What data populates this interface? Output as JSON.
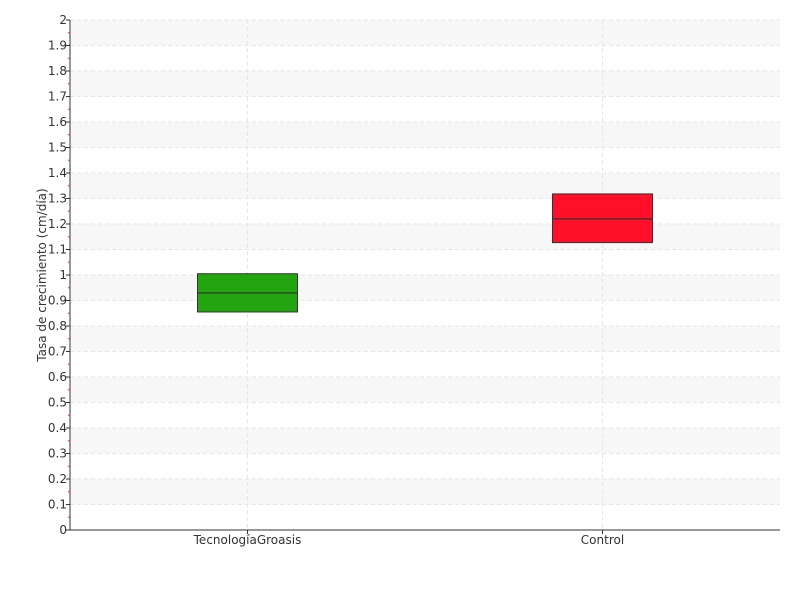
{
  "chart_data": {
    "type": "box",
    "title": "",
    "xlabel": "",
    "ylabel": "Tasa de crecimiento (cm/día)",
    "ylim": [
      0,
      2
    ],
    "ytick_step": 0.1,
    "yticks": [
      "0",
      "0.1",
      "0.2",
      "0.3",
      "0.4",
      "0.5",
      "0.6",
      "0.7",
      "0.8",
      "0.9",
      "1",
      "1.1",
      "1.2",
      "1.3",
      "1.4",
      "1.5",
      "1.6",
      "1.7",
      "1.8",
      "1.9",
      "2"
    ],
    "grid": true,
    "categories": [
      "TecnologíaGroasis",
      "Control"
    ],
    "boxes": [
      {
        "category": "TecnologíaGroasis",
        "q1": 0.855,
        "median": 0.93,
        "q3": 1.005,
        "color": "#22a50e"
      },
      {
        "category": "Control",
        "q1": 1.127,
        "median": 1.22,
        "q3": 1.318,
        "color": "#ff0f28"
      }
    ]
  }
}
